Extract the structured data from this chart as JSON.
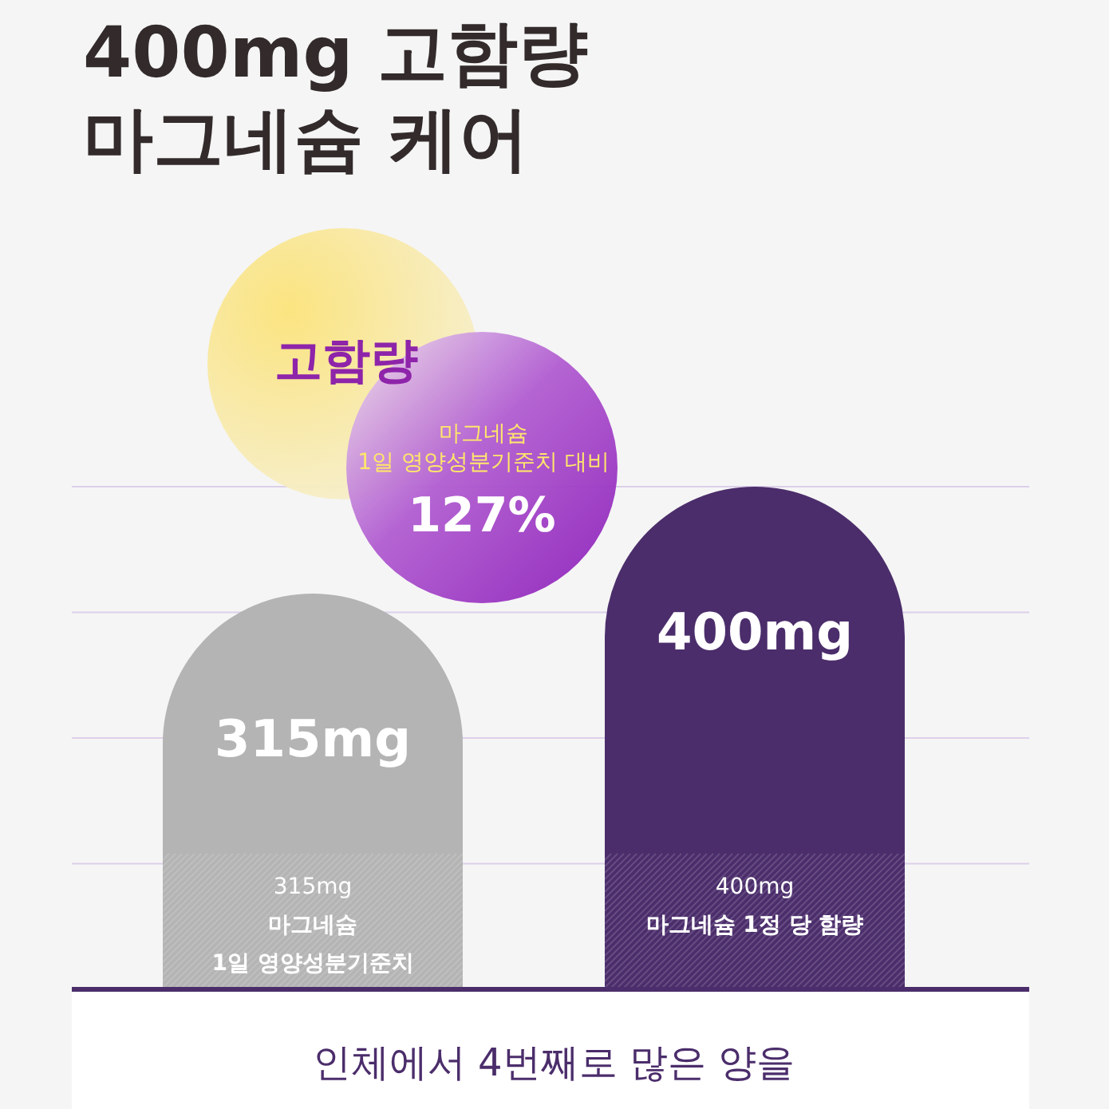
{
  "chart_data": {
    "type": "bar",
    "title": "400mg 고함량\n마그네슘 케어",
    "categories": [
      "315mg\n마그네슘\n1일 영양성분기준치",
      "400mg\n마그네슘 1정 당 함량"
    ],
    "values": [
      315,
      400
    ],
    "colors": [
      "#b4b4b4",
      "#4b2d6b"
    ],
    "value_labels": [
      "315mg",
      "400mg"
    ],
    "ylim": [
      0,
      400
    ],
    "yticks": [
      {
        "value": 100,
        "label": null
      },
      {
        "value": 200,
        "label": null
      },
      {
        "value": 300,
        "label": null
      },
      {
        "value": 400,
        "label": null
      }
    ],
    "grid": "y",
    "annotations": [
      "고함량",
      "마그네슘\n1일 영양성분기준치 대비",
      "127%",
      "인체에서 4번째로 많은 양을"
    ]
  }
}
